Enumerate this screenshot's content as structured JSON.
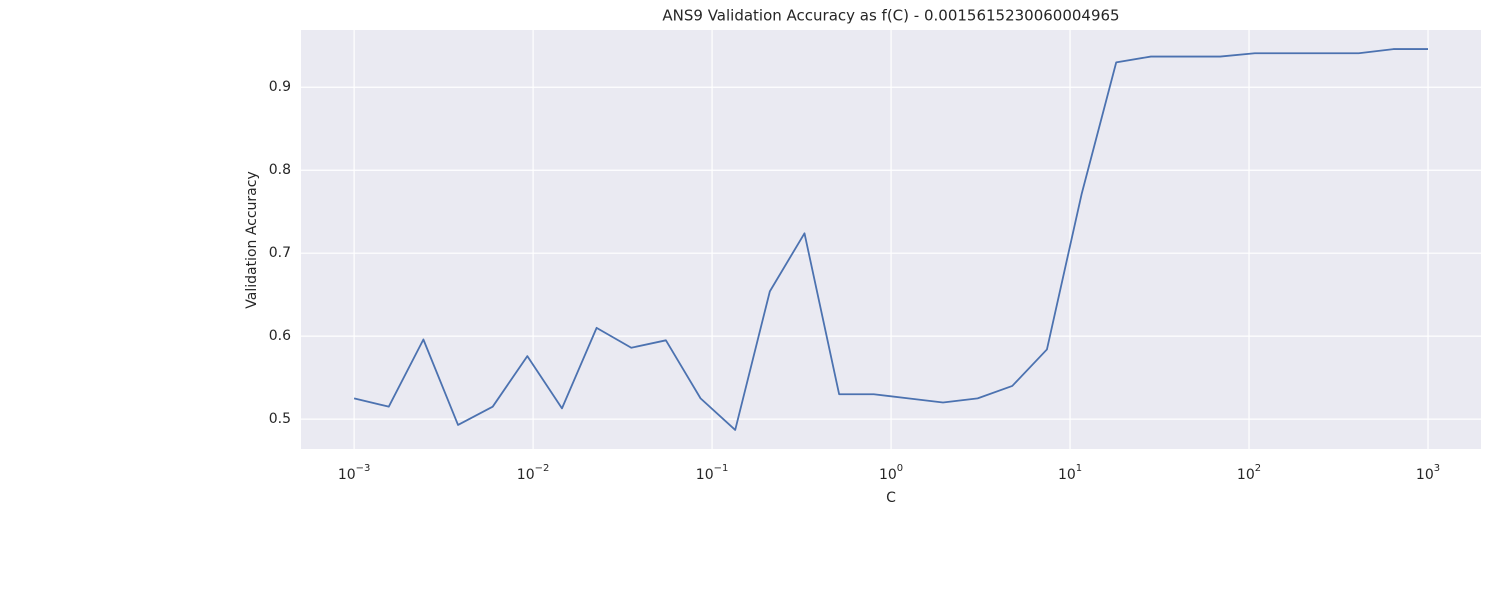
{
  "chart_data": {
    "type": "line",
    "title": "ANS9 Validation Accuracy as f(C) - 0.0015615230060004965",
    "xlabel": "C",
    "ylabel": "Validation Accuracy",
    "xscale": "log",
    "grid": true,
    "background": "#eaeaf2",
    "grid_color": "#ffffff",
    "x": [
      0.001,
      0.0015616,
      0.0024384,
      0.0038078,
      0.005946,
      0.0092851,
      0.014499,
      0.022642,
      0.035357,
      0.055212,
      0.086219,
      0.13464,
      0.21025,
      0.32832,
      0.51269,
      0.80061,
      1.249,
      1.9505,
      3.0459,
      4.7563,
      7.4274,
      11.598,
      18.112,
      28.284,
      44.168,
      68.972,
      107.7,
      168.19,
      262.64,
      410.13,
      640.46,
      1000
    ],
    "series": [
      {
        "name": "Validation Accuracy",
        "color": "#4c72b0",
        "values": [
          0.525,
          0.515,
          0.596,
          0.493,
          0.515,
          0.576,
          0.513,
          0.61,
          0.586,
          0.595,
          0.525,
          0.487,
          0.654,
          0.724,
          0.53,
          0.53,
          0.525,
          0.52,
          0.525,
          0.54,
          0.584,
          0.771,
          0.93,
          0.937,
          0.937,
          0.937,
          0.941,
          0.941,
          0.941,
          0.941,
          0.946,
          0.946
        ]
      }
    ],
    "xlim": [
      0.000505,
      1977
    ],
    "ylim": [
      0.464,
      0.969
    ],
    "xticks": [
      {
        "value": 0.001,
        "label": "10",
        "exponent": "−3"
      },
      {
        "value": 0.01,
        "label": "10",
        "exponent": "−2"
      },
      {
        "value": 0.1,
        "label": "10",
        "exponent": "−1"
      },
      {
        "value": 1,
        "label": "10",
        "exponent": "0"
      },
      {
        "value": 10,
        "label": "10",
        "exponent": "1"
      },
      {
        "value": 100,
        "label": "10",
        "exponent": "2"
      },
      {
        "value": 1000,
        "label": "10",
        "exponent": "3"
      }
    ],
    "yticks": [
      0.5,
      0.6,
      0.7,
      0.8,
      0.9
    ]
  }
}
